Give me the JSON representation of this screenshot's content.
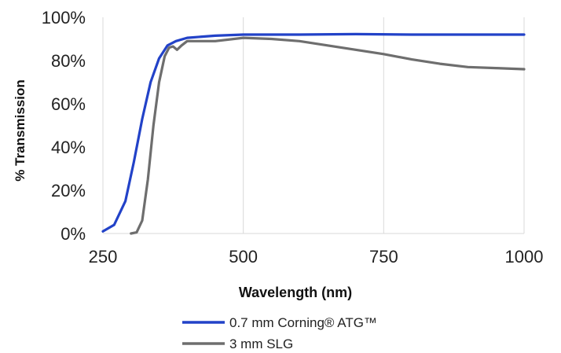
{
  "chart_data": {
    "type": "line",
    "title": "",
    "xlabel": "Wavelength (nm)",
    "ylabel": "% Transmission",
    "xlim": [
      250,
      1000
    ],
    "ylim": [
      0,
      100
    ],
    "x_ticks": [
      250,
      500,
      750,
      1000
    ],
    "x_tick_labels": [
      "250",
      "500",
      "750",
      "1000"
    ],
    "y_ticks": [
      0,
      20,
      40,
      60,
      80,
      100
    ],
    "y_tick_labels": [
      "0%",
      "20%",
      "40%",
      "60%",
      "80%",
      "100%"
    ],
    "grid": "vertical",
    "legend_position": "bottom",
    "series": [
      {
        "name": "0.7 mm Corning® ATG™",
        "color": "#2242c8",
        "points": [
          [
            250,
            1
          ],
          [
            270,
            4
          ],
          [
            290,
            15
          ],
          [
            305,
            33
          ],
          [
            320,
            53
          ],
          [
            335,
            70
          ],
          [
            350,
            81
          ],
          [
            365,
            87
          ],
          [
            380,
            89
          ],
          [
            400,
            90.5
          ],
          [
            450,
            91.5
          ],
          [
            500,
            92
          ],
          [
            600,
            92
          ],
          [
            700,
            92.2
          ],
          [
            800,
            92
          ],
          [
            900,
            92
          ],
          [
            1000,
            92
          ]
        ]
      },
      {
        "name": "3 mm SLG",
        "color": "#6e6e6e",
        "points": [
          [
            300,
            0
          ],
          [
            310,
            0.5
          ],
          [
            320,
            6
          ],
          [
            330,
            25
          ],
          [
            340,
            50
          ],
          [
            350,
            70
          ],
          [
            360,
            82
          ],
          [
            368,
            86
          ],
          [
            375,
            86.5
          ],
          [
            382,
            85
          ],
          [
            390,
            87
          ],
          [
            400,
            89
          ],
          [
            450,
            89
          ],
          [
            500,
            90.5
          ],
          [
            550,
            90
          ],
          [
            600,
            89
          ],
          [
            650,
            87
          ],
          [
            700,
            85
          ],
          [
            750,
            83
          ],
          [
            800,
            80.5
          ],
          [
            850,
            78.5
          ],
          [
            900,
            77
          ],
          [
            950,
            76.5
          ],
          [
            1000,
            76
          ]
        ]
      }
    ]
  }
}
